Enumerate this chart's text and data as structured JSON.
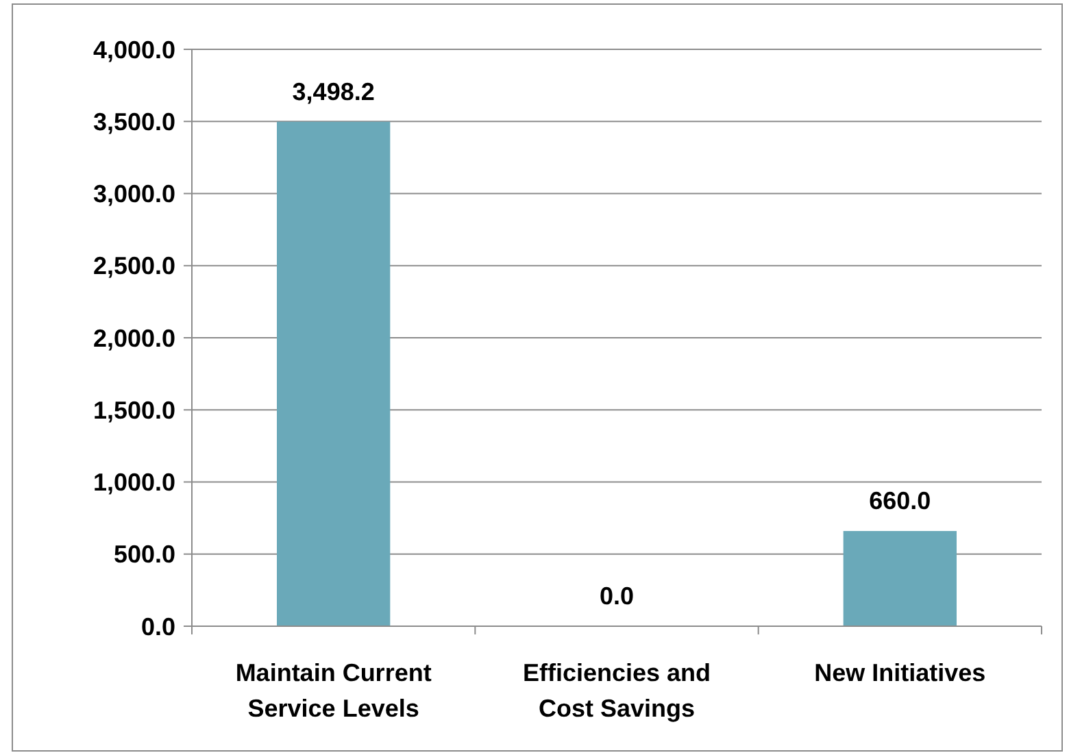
{
  "chart_data": {
    "type": "bar",
    "categories": [
      "Maintain Current Service Levels",
      "Efficiencies and Cost Savings",
      "New Initiatives"
    ],
    "values": [
      3498.2,
      0,
      660
    ],
    "color": "#6aa9b9",
    "value_labels": [
      "3,498.2",
      "0.0",
      "660.0"
    ],
    "ylim": [
      0,
      4000
    ],
    "yticks": [
      {
        "value": 0,
        "label": "0.0"
      },
      {
        "value": 500,
        "label": "500.0"
      },
      {
        "value": 1000,
        "label": "1,000.0"
      },
      {
        "value": 1500,
        "label": "1,500.0"
      },
      {
        "value": 2000,
        "label": "2,000.0"
      },
      {
        "value": 2500,
        "label": "2,500.0"
      },
      {
        "value": 3000,
        "label": "3,000.0"
      },
      {
        "value": 3500,
        "label": "3,500.0"
      },
      {
        "value": 4000,
        "label": "4,000.0"
      }
    ],
    "grid": "y"
  }
}
